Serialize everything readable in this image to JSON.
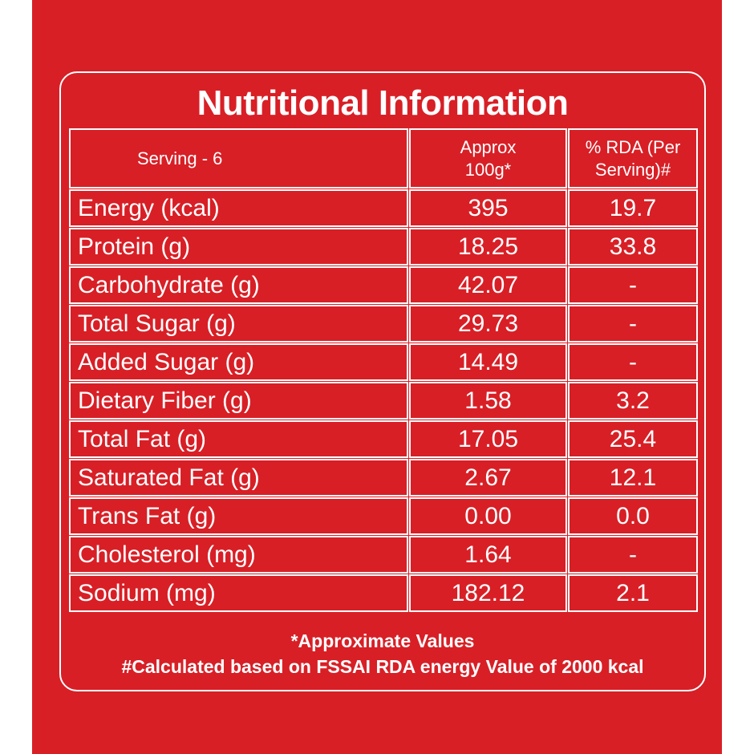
{
  "title": "Nutritional Information",
  "header": {
    "serving": "Serving - 6",
    "col2": "Approx\n100g*",
    "col3": "% RDA (Per\nServing)#"
  },
  "rows": [
    {
      "nutrient": "Energy (kcal)",
      "approx": "395",
      "rda": "19.7"
    },
    {
      "nutrient": "Protein (g)",
      "approx": "18.25",
      "rda": "33.8"
    },
    {
      "nutrient": "Carbohydrate (g)",
      "approx": "42.07",
      "rda": "-"
    },
    {
      "nutrient": "Total Sugar (g)",
      "approx": "29.73",
      "rda": "-"
    },
    {
      "nutrient": "Added Sugar (g)",
      "approx": "14.49",
      "rda": "-"
    },
    {
      "nutrient": "Dietary Fiber (g)",
      "approx": "1.58",
      "rda": "3.2"
    },
    {
      "nutrient": "Total Fat (g)",
      "approx": "17.05",
      "rda": "25.4"
    },
    {
      "nutrient": "Saturated Fat (g)",
      "approx": "2.67",
      "rda": "12.1"
    },
    {
      "nutrient": "Trans Fat (g)",
      "approx": "0.00",
      "rda": "0.0"
    },
    {
      "nutrient": "Cholesterol (mg)",
      "approx": "1.64",
      "rda": "-"
    },
    {
      "nutrient": "Sodium (mg)",
      "approx": "182.12",
      "rda": "2.1"
    }
  ],
  "footer": {
    "note1": "*Approximate Values",
    "note2": "#Calculated based on FSSAI RDA energy Value of 2000 kcal"
  },
  "colors": {
    "background": "#d81f26",
    "text": "#ffffff"
  }
}
